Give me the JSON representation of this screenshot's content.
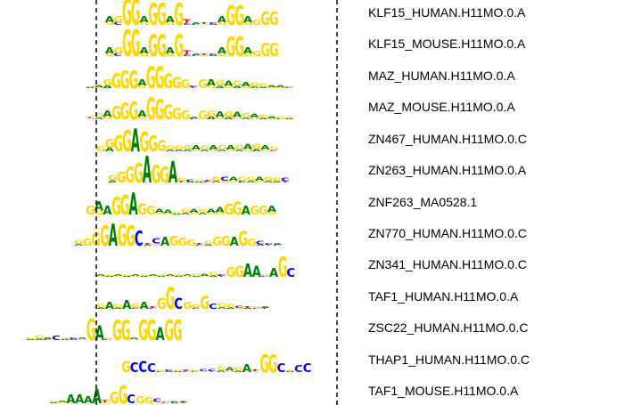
{
  "colors": {
    "A": "#008000",
    "C": "#0000ff",
    "G": "#ffd700",
    "T": "#ff0000",
    "line": "#000000"
  },
  "motifs": [
    {
      "name": "KLF15_HUMAN.H11MO.0.A",
      "segments": [
        [
          1,
          ""
        ],
        [
          1,
          "AG"
        ],
        [
          1,
          "GC"
        ],
        [
          3,
          "G"
        ],
        [
          3,
          "G"
        ],
        [
          1,
          "AG"
        ],
        [
          2.5,
          "G"
        ],
        [
          2.5,
          "G"
        ],
        [
          1,
          "AG"
        ],
        [
          2.5,
          "G"
        ],
        [
          0.6,
          "TC"
        ],
        [
          0.3,
          "AC"
        ],
        [
          0.3,
          "TG"
        ],
        [
          0.3,
          "CA"
        ],
        [
          1,
          "AG"
        ],
        [
          2.2,
          "G"
        ],
        [
          2.2,
          "G"
        ],
        [
          1,
          "AG"
        ],
        [
          0.6,
          "G"
        ],
        [
          1.5,
          "G"
        ],
        [
          1.5,
          "G"
        ]
      ]
    },
    {
      "name": "KLF15_MOUSE.H11MO.0.A",
      "segments": [
        [
          1,
          ""
        ],
        [
          1,
          "AG"
        ],
        [
          1,
          "GC"
        ],
        [
          3,
          "G"
        ],
        [
          3,
          "G"
        ],
        [
          1,
          "AG"
        ],
        [
          2.5,
          "G"
        ],
        [
          2.5,
          "G"
        ],
        [
          1,
          "AG"
        ],
        [
          2.5,
          "G"
        ],
        [
          0.6,
          "TC"
        ],
        [
          0.3,
          "AC"
        ],
        [
          0.3,
          "TG"
        ],
        [
          0.3,
          "CA"
        ],
        [
          1,
          "AG"
        ],
        [
          2.2,
          "G"
        ],
        [
          2.2,
          "G"
        ],
        [
          1,
          "AG"
        ],
        [
          0.6,
          "G"
        ],
        [
          1.5,
          "G"
        ],
        [
          1.5,
          "G"
        ]
      ]
    },
    {
      "name": "MAZ_HUMAN.H11MO.0.A",
      "segments": [
        [
          0.2,
          "GA"
        ],
        [
          0.4,
          "AG"
        ],
        [
          1,
          "GA"
        ],
        [
          1.7,
          "G"
        ],
        [
          2,
          "G"
        ],
        [
          2,
          "G"
        ],
        [
          1,
          "AG"
        ],
        [
          2.5,
          "G"
        ],
        [
          2.5,
          "G"
        ],
        [
          1.6,
          "G"
        ],
        [
          1.2,
          "G"
        ],
        [
          1,
          "G"
        ],
        [
          0.3,
          "CT"
        ],
        [
          1,
          "G"
        ],
        [
          1,
          "AG"
        ],
        [
          0.9,
          "GA"
        ],
        [
          0.8,
          "AG"
        ],
        [
          0.8,
          "GA"
        ],
        [
          0.7,
          "AG"
        ],
        [
          0.6,
          "GA"
        ],
        [
          0.5,
          "GA"
        ],
        [
          0.4,
          "AG"
        ],
        [
          0.4,
          "AG"
        ],
        [
          0.3,
          "GC"
        ]
      ]
    },
    {
      "name": "MAZ_MOUSE.H11MO.0.A",
      "segments": [
        [
          0.2,
          "TG"
        ],
        [
          0.7,
          "GA"
        ],
        [
          1,
          "AG"
        ],
        [
          1.5,
          "G"
        ],
        [
          1.9,
          "G"
        ],
        [
          2,
          "G"
        ],
        [
          1,
          "AG"
        ],
        [
          2.5,
          "G"
        ],
        [
          2.3,
          "G"
        ],
        [
          1.6,
          "G"
        ],
        [
          1.3,
          "G"
        ],
        [
          1,
          "G"
        ],
        [
          0.3,
          "AC"
        ],
        [
          1,
          "G"
        ],
        [
          1,
          "GA"
        ],
        [
          0.9,
          "AG"
        ],
        [
          0.8,
          "GA"
        ],
        [
          0.8,
          "AG"
        ],
        [
          0.7,
          "GA"
        ],
        [
          0.6,
          "AG"
        ],
        [
          0.5,
          "GA"
        ],
        [
          0.4,
          "AG"
        ],
        [
          0.4,
          "GC"
        ],
        [
          0.3,
          "GA"
        ]
      ]
    },
    {
      "name": "ZN467_HUMAN.H11MO.0.C",
      "segments": [
        [
          0.6,
          "G"
        ],
        [
          1.4,
          "GA"
        ],
        [
          1.8,
          "G"
        ],
        [
          2.4,
          "G"
        ],
        [
          2.6,
          "A"
        ],
        [
          2.2,
          "G"
        ],
        [
          1.8,
          "G"
        ],
        [
          1.2,
          "G"
        ],
        [
          0.6,
          "GA"
        ],
        [
          0.6,
          "GA"
        ],
        [
          0.7,
          "GA"
        ],
        [
          0.7,
          "AG"
        ],
        [
          0.7,
          "GA"
        ],
        [
          0.7,
          "AG"
        ],
        [
          0.7,
          "GA"
        ],
        [
          0.7,
          "AG"
        ],
        [
          0.7,
          "GA"
        ],
        [
          0.8,
          "AG"
        ],
        [
          0.8,
          "GA"
        ],
        [
          0.7,
          "AG"
        ],
        [
          0.5,
          "GC"
        ]
      ]
    },
    {
      "name": "ZN263_HUMAN.H11MO.0.A",
      "segments": [
        [
          0.8,
          "GA"
        ],
        [
          1.2,
          "G"
        ],
        [
          1.8,
          "G"
        ],
        [
          2.2,
          "G"
        ],
        [
          3,
          "A"
        ],
        [
          2,
          "G"
        ],
        [
          1.8,
          "G"
        ],
        [
          2.4,
          "A"
        ],
        [
          0.5,
          "GT"
        ],
        [
          0.4,
          "CA"
        ],
        [
          0.3,
          "GA"
        ],
        [
          0.3,
          "TC"
        ],
        [
          0.6,
          "GA"
        ],
        [
          0.6,
          "CG"
        ],
        [
          0.6,
          "AG"
        ],
        [
          0.6,
          "GC"
        ],
        [
          0.6,
          "GA"
        ],
        [
          0.6,
          "AG"
        ],
        [
          0.6,
          "GA"
        ],
        [
          0.5,
          "GA"
        ],
        [
          0.5,
          "CT"
        ]
      ]
    },
    {
      "name": "ZNF263_MA0528.1",
      "segments": [
        [
          1,
          "G"
        ],
        [
          1.5,
          "AG"
        ],
        [
          1,
          "A"
        ],
        [
          2,
          "G"
        ],
        [
          2.2,
          "G"
        ],
        [
          2.5,
          "A"
        ],
        [
          1.2,
          "G"
        ],
        [
          1,
          "G"
        ],
        [
          0.6,
          "AG"
        ],
        [
          0.5,
          "AG"
        ],
        [
          0.4,
          "GA"
        ],
        [
          0.6,
          "GA"
        ],
        [
          0.6,
          "AG"
        ],
        [
          0.6,
          "GA"
        ],
        [
          0.6,
          "AG"
        ],
        [
          0.8,
          "AG"
        ],
        [
          1.2,
          "G"
        ],
        [
          1.4,
          "G"
        ],
        [
          1,
          "A"
        ],
        [
          1,
          "G"
        ],
        [
          1,
          "G"
        ],
        [
          1,
          "AG"
        ]
      ]
    },
    {
      "name": "ZN770_HUMAN.H11MO.0.C",
      "segments": [
        [
          0.6,
          "GA"
        ],
        [
          0.8,
          "G"
        ],
        [
          1.4,
          "G"
        ],
        [
          2.3,
          "G"
        ],
        [
          2.5,
          "A"
        ],
        [
          2.4,
          "G"
        ],
        [
          2.3,
          "G"
        ],
        [
          1.7,
          "C"
        ],
        [
          0.3,
          "TA"
        ],
        [
          0.8,
          "CG"
        ],
        [
          1,
          "A"
        ],
        [
          1.1,
          "G"
        ],
        [
          0.9,
          "G"
        ],
        [
          0.7,
          "G"
        ],
        [
          0.3,
          "TC"
        ],
        [
          0.5,
          "GA"
        ],
        [
          1,
          "G"
        ],
        [
          1.1,
          "G"
        ],
        [
          1,
          "A"
        ],
        [
          1.6,
          "G"
        ],
        [
          0.8,
          "G"
        ],
        [
          0.5,
          "CA"
        ],
        [
          0.3,
          "CT"
        ],
        [
          0.3,
          "AC"
        ]
      ]
    },
    {
      "name": "ZN341_HUMAN.H11MO.0.C",
      "segments": [
        [
          0.3,
          "AG"
        ],
        [
          0.3,
          "GA"
        ],
        [
          0.3,
          "AG"
        ],
        [
          0.3,
          "GA"
        ],
        [
          0.3,
          "AG"
        ],
        [
          0.3,
          "GA"
        ],
        [
          0.3,
          "AG"
        ],
        [
          0.3,
          "GA"
        ],
        [
          0.3,
          "AG"
        ],
        [
          0.3,
          "GA"
        ],
        [
          0.3,
          "AG"
        ],
        [
          0.4,
          "GA"
        ],
        [
          0.4,
          "AG"
        ],
        [
          0.5,
          "GA"
        ],
        [
          0.3,
          "CT"
        ],
        [
          1.1,
          "G"
        ],
        [
          1.2,
          "G"
        ],
        [
          1.5,
          "A"
        ],
        [
          1.2,
          "A"
        ],
        [
          0.3,
          "GC"
        ],
        [
          1,
          "A"
        ],
        [
          2.3,
          "G"
        ],
        [
          1,
          "C"
        ]
      ]
    },
    {
      "name": "TAF1_HUMAN.H11MO.0.A",
      "segments": [
        [
          0.5,
          "GA"
        ],
        [
          0.8,
          "A"
        ],
        [
          0.5,
          "GA"
        ],
        [
          1,
          "A"
        ],
        [
          0.5,
          "GC"
        ],
        [
          0.8,
          "A"
        ],
        [
          0.3,
          "TC"
        ],
        [
          1.2,
          "G"
        ],
        [
          2.5,
          "G"
        ],
        [
          1.2,
          "C"
        ],
        [
          0.8,
          "G"
        ],
        [
          0.5,
          "GC"
        ],
        [
          1.4,
          "G"
        ],
        [
          0.6,
          "C"
        ],
        [
          0.6,
          "GA"
        ],
        [
          0.5,
          "GA"
        ],
        [
          0.4,
          "CG"
        ],
        [
          0.3,
          "TA"
        ],
        [
          0.3,
          "GC"
        ],
        [
          0.3,
          "AT"
        ]
      ]
    },
    {
      "name": "ZSC22_HUMAN.H11MO.0.C",
      "segments": [
        [
          0.3,
          "GA"
        ],
        [
          0.5,
          "GA"
        ],
        [
          0.3,
          "AC"
        ],
        [
          0.5,
          "C"
        ],
        [
          0.2,
          "GA"
        ],
        [
          0.3,
          "CA"
        ],
        [
          0.3,
          "AG"
        ],
        [
          2.4,
          "G"
        ],
        [
          1.6,
          "A"
        ],
        [
          0.3,
          "GC"
        ],
        [
          2.3,
          "G"
        ],
        [
          2.3,
          "G"
        ],
        [
          0.3,
          "AG"
        ],
        [
          2.3,
          "G"
        ],
        [
          2.3,
          "G"
        ],
        [
          1.4,
          "A"
        ],
        [
          2.3,
          "G"
        ],
        [
          2.3,
          "G"
        ]
      ]
    },
    {
      "name": "THAP1_HUMAN.H11MO.0.C",
      "segments": [
        [
          1.2,
          "G"
        ],
        [
          1.1,
          "C"
        ],
        [
          1.2,
          "C"
        ],
        [
          1,
          "C"
        ],
        [
          0.3,
          "GC"
        ],
        [
          0.3,
          "CA"
        ],
        [
          0.3,
          "GA"
        ],
        [
          0.3,
          "TC"
        ],
        [
          0.3,
          "GC"
        ],
        [
          0.4,
          "CG"
        ],
        [
          0.4,
          "CT"
        ],
        [
          0.6,
          "GA"
        ],
        [
          0.5,
          "AG"
        ],
        [
          0.5,
          "GA"
        ],
        [
          0.9,
          "A"
        ],
        [
          0.3,
          "TG"
        ],
        [
          2,
          "G"
        ],
        [
          2,
          "G"
        ],
        [
          1,
          "C"
        ],
        [
          0.3,
          "GA"
        ],
        [
          0.8,
          "C"
        ],
        [
          1,
          "C"
        ]
      ]
    },
    {
      "name": "TAF1_MOUSE.H11MO.0.A",
      "segments": [
        [
          0.3,
          "GA"
        ],
        [
          0.3,
          "AG"
        ],
        [
          1,
          "A"
        ],
        [
          1,
          "A"
        ],
        [
          0.8,
          "A"
        ],
        [
          1.6,
          "A"
        ],
        [
          0.4,
          "TG"
        ],
        [
          1.3,
          "G"
        ],
        [
          2,
          "G"
        ],
        [
          1,
          "C"
        ],
        [
          0.8,
          "G"
        ],
        [
          0.7,
          "G"
        ],
        [
          0.5,
          "CG"
        ],
        [
          0.3,
          "GC"
        ],
        [
          0.2,
          "CA"
        ],
        [
          0.2,
          "AT"
        ]
      ]
    }
  ]
}
